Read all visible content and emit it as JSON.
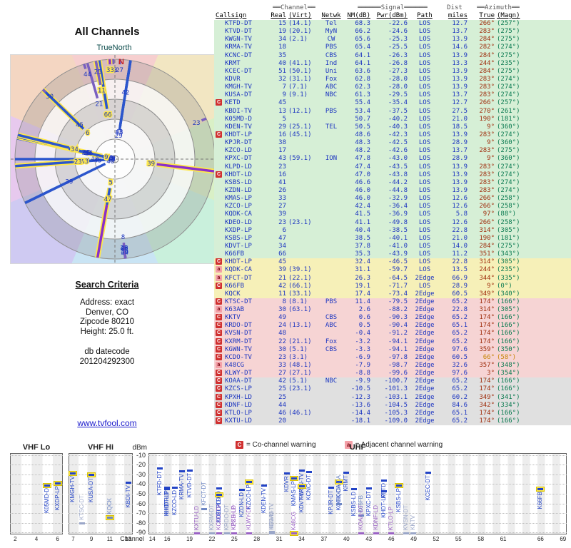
{
  "polar": {
    "title": "All Channels",
    "north_label": "TrueNorth",
    "n_marker": "N"
  },
  "criteria": {
    "heading": "Search Criteria",
    "lines": [
      "Address: exact",
      "Denver, CO",
      "Zipcode 80210",
      "Height: 25.0 ft."
    ],
    "db_lines": [
      "db datecode",
      "201204292300"
    ]
  },
  "footer_link": {
    "label": "www.tvfool.com"
  },
  "table": {
    "hdr1": {
      "channel": "══Channel══",
      "signal": "══════Signal══════",
      "dist": "Dist",
      "azimuth": "══Azimuth══"
    },
    "hdr2": {
      "callsign": "Callsign",
      "real": "Real",
      "virt": "(Virt)",
      "netwk": "Netwk",
      "nm": "NM(dB)",
      "pwr": "Pwr(dBm)",
      "path": "Path",
      "miles": "miles",
      "true": "True",
      "magn": "(Magn)"
    },
    "rows": [
      {
        "cs": "KTFD-DT",
        "re": 15,
        "vi": "(14.1)",
        "nw": "Tel",
        "nm": "68.3",
        "pw": "-22.6",
        "pa": "LOS",
        "di": "12.7",
        "tr": "266°",
        "mg": "(257°)",
        "q": "g"
      },
      {
        "cs": "KTVD-DT",
        "re": 19,
        "vi": "(20.1)",
        "nw": "MyN",
        "nm": "66.2",
        "pw": "-24.6",
        "pa": "LOS",
        "di": "13.7",
        "tr": "283°",
        "mg": "(275°)",
        "q": "g"
      },
      {
        "cs": "KWGN-TV",
        "re": 34,
        "vi": "(2.1)",
        "nw": "CW",
        "nm": "65.6",
        "pw": "-25.3",
        "pa": "LOS",
        "di": "13.9",
        "tr": "284°",
        "mg": "(275°)",
        "q": "g"
      },
      {
        "cs": "KRMA-TV",
        "re": 18,
        "vi": "",
        "nw": "PBS",
        "nm": "65.4",
        "pw": "-25.5",
        "pa": "LOS",
        "di": "14.6",
        "tr": "282°",
        "mg": "(274°)",
        "q": "g"
      },
      {
        "cs": "KCNC-DT",
        "re": 35,
        "vi": "",
        "nw": "CBS",
        "nm": "64.1",
        "pw": "-26.3",
        "pa": "LOS",
        "di": "13.9",
        "tr": "284°",
        "mg": "(275°)",
        "q": "g"
      },
      {
        "cs": "KRMT",
        "re": 40,
        "vi": "(41.1)",
        "nw": "Ind",
        "nm": "64.1",
        "pw": "-26.8",
        "pa": "LOS",
        "di": "13.3",
        "tr": "244°",
        "mg": "(235°)",
        "q": "g"
      },
      {
        "cs": "KCEC-DT",
        "re": 51,
        "vi": "(50.1)",
        "nw": "Uni",
        "nm": "63.6",
        "pw": "-27.3",
        "pa": "LOS",
        "di": "13.9",
        "tr": "284°",
        "mg": "(275°)",
        "q": "g"
      },
      {
        "cs": "KDVR",
        "re": 32,
        "vi": "(31.1)",
        "nw": "Fox",
        "nm": "62.8",
        "pw": "-28.0",
        "pa": "LOS",
        "di": "13.9",
        "tr": "283°",
        "mg": "(274°)",
        "q": "g"
      },
      {
        "cs": "KMGH-TV",
        "re": 7,
        "vi": "(7.1)",
        "nw": "ABC",
        "nm": "62.3",
        "pw": "-28.0",
        "pa": "LOS",
        "di": "13.9",
        "tr": "283°",
        "mg": "(274°)",
        "q": "g",
        "hl": 1
      },
      {
        "cs": "KUSA-DT",
        "re": 9,
        "vi": "(9.1)",
        "nw": "NBC",
        "nm": "61.3",
        "pw": "-29.5",
        "pa": "LOS",
        "di": "13.7",
        "tr": "283°",
        "mg": "(274°)",
        "q": "g",
        "hl": 1
      },
      {
        "cs": "KETD",
        "re": 45,
        "vi": "",
        "nw": "",
        "nm": "55.4",
        "pw": "-35.4",
        "pa": "LOS",
        "di": "12.7",
        "tr": "266°",
        "mg": "(257°)",
        "q": "g",
        "w": "C"
      },
      {
        "cs": "KBDI-TV",
        "re": 13,
        "vi": "(12.1)",
        "nw": "PBS",
        "nm": "53.4",
        "pw": "-37.5",
        "pa": "LOS",
        "di": "27.5",
        "tr": "270°",
        "mg": "(261°)",
        "q": "g"
      },
      {
        "cs": "K05MD-D",
        "re": 5,
        "vi": "",
        "nw": "",
        "nm": "50.7",
        "pw": "-40.2",
        "pa": "LOS",
        "di": "21.0",
        "tr": "190°",
        "mg": "(181°)",
        "q": "g",
        "hl": 1
      },
      {
        "cs": "KDEN-TV",
        "re": 29,
        "vi": "(25.1)",
        "nw": "TEL",
        "nm": "50.5",
        "pw": "-40.3",
        "pa": "LOS",
        "di": "18.5",
        "tr": "9°",
        "mg": "(360°)",
        "q": "g"
      },
      {
        "cs": "KHDT-LP",
        "re": 16,
        "vi": "(45.1)",
        "nw": "",
        "nm": "48.6",
        "pw": "-42.3",
        "pa": "LOS",
        "di": "13.9",
        "tr": "283°",
        "mg": "(274°)",
        "q": "g",
        "w": "C"
      },
      {
        "cs": "KPJR-DT",
        "re": 38,
        "vi": "",
        "nw": "",
        "nm": "48.3",
        "pw": "-42.5",
        "pa": "LOS",
        "di": "28.9",
        "tr": "9°",
        "mg": "(360°)",
        "q": "g"
      },
      {
        "cs": "KZCO-LD",
        "re": 17,
        "vi": "",
        "nw": "",
        "nm": "48.2",
        "pw": "-42.6",
        "pa": "LOS",
        "di": "13.7",
        "tr": "283°",
        "mg": "(275°)",
        "q": "g"
      },
      {
        "cs": "KPXC-DT",
        "re": 43,
        "vi": "(59.1)",
        "nw": "ION",
        "nm": "47.8",
        "pw": "-43.0",
        "pa": "LOS",
        "di": "28.9",
        "tr": "9°",
        "mg": "(360°)",
        "q": "g"
      },
      {
        "cs": "KLPD-LD",
        "re": 23,
        "vi": "",
        "nw": "",
        "nm": "47.4",
        "pw": "-43.5",
        "pa": "LOS",
        "di": "13.9",
        "tr": "283°",
        "mg": "(274°)",
        "q": "g"
      },
      {
        "cs": "KHDT-LD",
        "re": 16,
        "vi": "",
        "nw": "",
        "nm": "47.0",
        "pw": "-43.8",
        "pa": "LOS",
        "di": "13.9",
        "tr": "283°",
        "mg": "(274°)",
        "q": "g",
        "w": "C"
      },
      {
        "cs": "KSBS-LD",
        "re": 41,
        "vi": "",
        "nw": "",
        "nm": "46.6",
        "pw": "-44.2",
        "pa": "LOS",
        "di": "13.9",
        "tr": "283°",
        "mg": "(274°)",
        "q": "g"
      },
      {
        "cs": "KZDN-LD",
        "re": 26,
        "vi": "",
        "nw": "",
        "nm": "46.0",
        "pw": "-44.8",
        "pa": "LOS",
        "di": "13.9",
        "tr": "283°",
        "mg": "(274°)",
        "q": "g"
      },
      {
        "cs": "KMAS-LP",
        "re": 33,
        "vi": "",
        "nw": "",
        "nm": "46.0",
        "pw": "-32.9",
        "pa": "LOS",
        "di": "12.6",
        "tr": "266°",
        "mg": "(258°)",
        "q": "g",
        "hl": 1
      },
      {
        "cs": "KZCO-LP",
        "re": 27,
        "vi": "",
        "nw": "",
        "nm": "42.4",
        "pw": "-36.4",
        "pa": "LOS",
        "di": "12.6",
        "tr": "266°",
        "mg": "(258°)",
        "q": "g",
        "hl": 1
      },
      {
        "cs": "KQDK-CA",
        "re": 39,
        "vi": "",
        "nw": "",
        "nm": "41.5",
        "pw": "-36.9",
        "pa": "LOS",
        "di": "5.8",
        "tr": "97°",
        "mg": "(88°)",
        "q": "g",
        "hl": 1,
        "col": "p"
      },
      {
        "cs": "KDEO-LD",
        "re": 23,
        "vi": "(23.1)",
        "nw": "",
        "nm": "41.1",
        "pw": "-49.8",
        "pa": "LOS",
        "di": "12.6",
        "tr": "266°",
        "mg": "(258°)",
        "q": "g",
        "hl": 1
      },
      {
        "cs": "KXDP-LP",
        "re": 6,
        "vi": "",
        "nw": "",
        "nm": "40.4",
        "pw": "-38.5",
        "pa": "LOS",
        "di": "22.8",
        "tr": "314°",
        "mg": "(305°)",
        "q": "g",
        "hl": 1
      },
      {
        "cs": "KSBS-LP",
        "re": 47,
        "vi": "",
        "nw": "",
        "nm": "38.5",
        "pw": "-40.1",
        "pa": "LOS",
        "di": "21.0",
        "tr": "190°",
        "mg": "(181°)",
        "q": "g",
        "hl": 1,
        "col": "p"
      },
      {
        "cs": "KDVT-LP",
        "re": 34,
        "vi": "",
        "nw": "",
        "nm": "37.8",
        "pw": "-41.0",
        "pa": "LOS",
        "di": "14.0",
        "tr": "284°",
        "mg": "(275°)",
        "q": "g",
        "hl": 1
      },
      {
        "cs": "K66FB",
        "re": 66,
        "vi": "",
        "nw": "",
        "nm": "35.3",
        "pw": "-43.9",
        "pa": "LOS",
        "di": "11.2",
        "tr": "351°",
        "mg": "(343°)",
        "q": "g",
        "hl": 1
      },
      {
        "cs": "KHDT-LP",
        "re": 45,
        "vi": "",
        "nw": "",
        "nm": "32.4",
        "pw": "-46.5",
        "pa": "LOS",
        "di": "22.8",
        "tr": "314°",
        "mg": "(305°)",
        "q": "y",
        "w": "C"
      },
      {
        "cs": "KQDK-CA",
        "re": 39,
        "vi": "(39.1)",
        "nw": "",
        "nm": "31.1",
        "pw": "-59.7",
        "pa": "LOS",
        "di": "13.5",
        "tr": "244°",
        "mg": "(235°)",
        "q": "y",
        "w": "a"
      },
      {
        "cs": "KFCT-DT",
        "re": 21,
        "vi": "(22.1)",
        "nw": "",
        "nm": "26.3",
        "pw": "-64.5",
        "pa": "2Edge",
        "di": "66.9",
        "tr": "344°",
        "mg": "(335°)",
        "q": "y",
        "w": "a"
      },
      {
        "cs": "K66FB",
        "re": 42,
        "vi": "(66.1)",
        "nw": "",
        "nm": "19.1",
        "pw": "-71.7",
        "pa": "LOS",
        "di": "28.9",
        "tr": "9°",
        "mg": "(0°)",
        "q": "y",
        "w": "C"
      },
      {
        "cs": "KQCK",
        "re": 11,
        "vi": "(33.1)",
        "nw": "",
        "nm": "17.4",
        "pw": "-73.4",
        "pa": "2Edge",
        "di": "60.5",
        "tr": "349°",
        "mg": "(340°)",
        "q": "y",
        "hl": 1
      },
      {
        "cs": "KTSC-DT",
        "re": 8,
        "vi": "(8.1)",
        "nw": "PBS",
        "nm": "11.4",
        "pw": "-79.5",
        "pa": "2Edge",
        "di": "65.2",
        "tr": "174°",
        "mg": "(166°)",
        "q": "r",
        "w": "C"
      },
      {
        "cs": "K63AB",
        "re": 30,
        "vi": "(63.1)",
        "nw": "",
        "nm": "2.6",
        "pw": "-88.2",
        "pa": "2Edge",
        "di": "22.8",
        "tr": "314°",
        "mg": "(305°)",
        "q": "r",
        "w": "a"
      },
      {
        "cs": "KKTV",
        "re": 49,
        "vi": "",
        "nw": "CBS",
        "nm": "0.6",
        "pw": "-90.3",
        "pa": "2Edge",
        "di": "65.2",
        "tr": "174°",
        "mg": "(166°)",
        "q": "r",
        "w": "C"
      },
      {
        "cs": "KRDO-DT",
        "re": 24,
        "vi": "(13.1)",
        "nw": "ABC",
        "nm": "0.5",
        "pw": "-90.4",
        "pa": "2Edge",
        "di": "65.1",
        "tr": "174°",
        "mg": "(166°)",
        "q": "r",
        "w": "C"
      },
      {
        "cs": "KVSN-DT",
        "re": 48,
        "vi": "",
        "nw": "",
        "nm": "-0.4",
        "pw": "-91.2",
        "pa": "2Edge",
        "di": "65.2",
        "tr": "174°",
        "mg": "(166°)",
        "q": "r",
        "w": "C"
      },
      {
        "cs": "KXRM-DT",
        "re": 22,
        "vi": "(21.1)",
        "nw": "Fox",
        "nm": "-3.2",
        "pw": "-94.1",
        "pa": "2Edge",
        "di": "65.2",
        "tr": "174°",
        "mg": "(166°)",
        "q": "r",
        "w": "C"
      },
      {
        "cs": "KGWN-TV",
        "re": 30,
        "vi": "(5.1)",
        "nw": "CBS",
        "nm": "-3.3",
        "pw": "-94.1",
        "pa": "2Edge",
        "di": "97.6",
        "tr": "359°",
        "mg": "(350°)",
        "q": "r",
        "w": "C"
      },
      {
        "cs": "KCDO-TV",
        "re": 23,
        "vi": "(3.1)",
        "nw": "",
        "nm": "-6.9",
        "pw": "-97.8",
        "pa": "2Edge",
        "di": "60.5",
        "tr": "66°",
        "mg": "(58°)",
        "q": "r",
        "w": "C",
        "az": "o"
      },
      {
        "cs": "K48CG",
        "re": 33,
        "vi": "(48.1)",
        "nw": "",
        "nm": "-7.9",
        "pw": "-98.7",
        "pa": "2Edge",
        "di": "32.6",
        "tr": "357°",
        "mg": "(348°)",
        "q": "r",
        "w": "a",
        "hl": 1,
        "col": "p"
      },
      {
        "cs": "KLWY-DT",
        "re": 27,
        "vi": "(27.1)",
        "nw": "",
        "nm": "-8.8",
        "pw": "-99.6",
        "pa": "2Edge",
        "di": "97.6",
        "tr": "3°",
        "mg": "(354°)",
        "q": "r",
        "w": "C"
      },
      {
        "cs": "KOAA-DT",
        "re": 42,
        "vi": "(5.1)",
        "nw": "NBC",
        "nm": "-9.9",
        "pw": "-100.7",
        "pa": "2Edge",
        "di": "65.2",
        "tr": "174°",
        "mg": "(166°)",
        "q": "x",
        "w": "C"
      },
      {
        "cs": "KZCS-LP",
        "re": 25,
        "vi": "(23.1)",
        "nw": "",
        "nm": "-10.5",
        "pw": "-101.3",
        "pa": "2Edge",
        "di": "65.2",
        "tr": "174°",
        "mg": "(166°)",
        "q": "x",
        "w": "C"
      },
      {
        "cs": "KPXH-LD",
        "re": 25,
        "vi": "",
        "nw": "",
        "nm": "-12.3",
        "pw": "-103.1",
        "pa": "2Edge",
        "di": "60.2",
        "tr": "349°",
        "mg": "(341°)",
        "q": "x",
        "w": "C"
      },
      {
        "cs": "KDNF-LD",
        "re": 44,
        "vi": "",
        "nw": "",
        "nm": "-13.6",
        "pw": "-104.5",
        "pa": "2Edge",
        "di": "84.6",
        "tr": "342°",
        "mg": "(334°)",
        "q": "x",
        "w": "C"
      },
      {
        "cs": "KTLO-LP",
        "re": 46,
        "vi": "(46.1)",
        "nw": "",
        "nm": "-14.4",
        "pw": "-105.3",
        "pa": "2Edge",
        "di": "65.1",
        "tr": "174°",
        "mg": "(166°)",
        "q": "x",
        "w": "C"
      },
      {
        "cs": "KXTU-LD",
        "re": 20,
        "vi": "",
        "nw": "",
        "nm": "-18.1",
        "pw": "-109.0",
        "pa": "2Edge",
        "di": "65.2",
        "tr": "174°",
        "mg": "(166°)",
        "q": "x",
        "w": "C"
      }
    ]
  },
  "spectrum": {
    "ylabel": "dBm",
    "xlabel": "Channel",
    "yticks": [
      -10,
      -20,
      -30,
      -40,
      -50,
      -60,
      -70,
      -80,
      -90
    ],
    "bands": [
      {
        "name": "VHF Lo",
        "min": 2,
        "max": 6,
        "ticks": [
          2,
          4,
          6
        ]
      },
      {
        "name": "VHF Hi",
        "min": 7,
        "max": 13,
        "ticks": [
          7,
          9,
          11,
          13
        ]
      },
      {
        "name": "UHF",
        "min": 14,
        "max": 69,
        "ticks": [
          14,
          16,
          19,
          22,
          25,
          28,
          31,
          34,
          37,
          40,
          43,
          46,
          49,
          52,
          55,
          58,
          61,
          66,
          69
        ]
      }
    ],
    "legend": [
      {
        "sym": "C",
        "text": "= Co-channel warning"
      },
      {
        "sym": "a",
        "text": "= Adjacent channel warning"
      }
    ]
  },
  "colors": {
    "quality_green": "#d6efd6",
    "quality_yellow": "#f6f0b8",
    "quality_red": "#f6d4d4",
    "quality_gray": "#e0e0e0",
    "warn_co": "#d03030",
    "warn_adj": "#f4a0a8",
    "link": "#1a1acc",
    "spoke_los": "#2b55cc",
    "spoke_purple": "#8a2fc9",
    "highlight": "#ffe84a"
  }
}
